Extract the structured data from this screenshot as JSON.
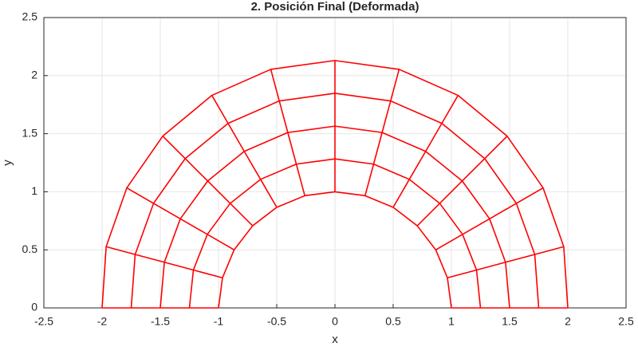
{
  "chart_data": {
    "type": "mesh",
    "title": "2. Posición Final (Deformada)",
    "xlabel": "x",
    "ylabel": "y",
    "color": "#ff0000",
    "grid": true,
    "xlim": [
      -2.5,
      2.5
    ],
    "xticks": [
      -2.5,
      -2,
      -1.5,
      -1,
      -0.5,
      0,
      0.5,
      1,
      1.5,
      2,
      2.5
    ],
    "ylim": [
      0,
      2.5
    ],
    "yticks": [
      0,
      0.5,
      1,
      1.5,
      2,
      2.5
    ],
    "rings": [
      {
        "x": [
          1,
          0.966,
          0.866,
          0.707,
          0.5,
          0.259,
          0,
          -0.259,
          -0.5,
          -0.707,
          -0.866,
          -0.966,
          -1
        ],
        "y": [
          0,
          0.259,
          0.5,
          0.707,
          0.866,
          0.966,
          1,
          0.966,
          0.866,
          0.707,
          0.5,
          0.259,
          0
        ]
      },
      {
        "x": [
          1.25,
          1.216,
          1.096,
          0.9,
          0.639,
          0.332,
          0,
          -0.332,
          -0.639,
          -0.9,
          -1.096,
          -1.216,
          -1.25
        ],
        "y": [
          0,
          0.326,
          0.633,
          0.9,
          1.107,
          1.238,
          1.283,
          1.238,
          1.107,
          0.9,
          0.633,
          0.326,
          0
        ]
      },
      {
        "x": [
          1.5,
          1.465,
          1.328,
          1.093,
          0.779,
          0.405,
          0,
          -0.405,
          -0.779,
          -1.093,
          -1.328,
          -1.465,
          -1.5
        ],
        "y": [
          0,
          0.393,
          0.767,
          1.093,
          1.348,
          1.51,
          1.565,
          1.51,
          1.348,
          1.093,
          0.767,
          0.393,
          0
        ]
      },
      {
        "x": [
          1.75,
          1.716,
          1.558,
          1.286,
          0.918,
          0.478,
          0,
          -0.478,
          -0.918,
          -1.286,
          -1.558,
          -1.716,
          -1.75
        ],
        "y": [
          0,
          0.46,
          0.9,
          1.286,
          1.589,
          1.782,
          1.848,
          1.782,
          1.589,
          1.286,
          0.9,
          0.46,
          0
        ]
      },
      {
        "x": [
          2,
          1.965,
          1.788,
          1.479,
          1.057,
          0.551,
          0,
          -0.551,
          -1.057,
          -1.479,
          -1.788,
          -1.965,
          -2
        ],
        "y": [
          0,
          0.527,
          1.033,
          1.479,
          1.83,
          2.054,
          2.13,
          2.054,
          1.83,
          1.479,
          1.033,
          0.527,
          0
        ]
      }
    ]
  }
}
